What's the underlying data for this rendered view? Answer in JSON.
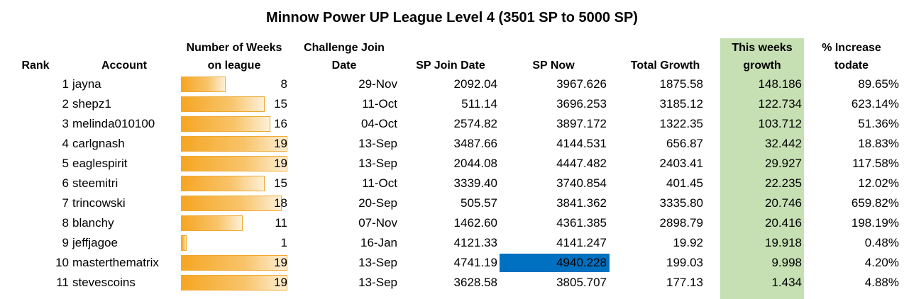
{
  "title": "Minnow Power UP League Level 4 (3501 SP to 5000 SP)",
  "colors": {
    "this_week_column": "#c6e0b4",
    "highlight_cell": "#0070c0",
    "bar": "#f5a623"
  },
  "headers": {
    "rank": "Rank",
    "account": "Account",
    "weeks_line1": "Number of Weeks",
    "weeks_line2": "on league",
    "challenge_line1": "Challenge Join",
    "challenge_line2": "Date",
    "sp_join": "SP Join Date",
    "sp_now": "SP Now",
    "total_growth": "Total Growth",
    "week_line1": "This weeks",
    "week_line2": "growth",
    "pct_line1": "% Increase",
    "pct_line2": "todate"
  },
  "weeks_max": 19,
  "rows": [
    {
      "rank": "1",
      "account": "jayna",
      "weeks": "8",
      "weeks_value": 8,
      "challenge_date": "29-Nov",
      "sp_join": "2092.04",
      "sp_now": "3967.626",
      "total_growth": "1875.58",
      "week_growth": "148.186",
      "pct": "89.65%"
    },
    {
      "rank": "2",
      "account": "shepz1",
      "weeks": "15",
      "weeks_value": 15,
      "challenge_date": "11-Oct",
      "sp_join": "511.14",
      "sp_now": "3696.253",
      "total_growth": "3185.12",
      "week_growth": "122.734",
      "pct": "623.14%"
    },
    {
      "rank": "3",
      "account": "melinda010100",
      "weeks": "16",
      "weeks_value": 16,
      "challenge_date": "04-Oct",
      "sp_join": "2574.82",
      "sp_now": "3897.172",
      "total_growth": "1322.35",
      "week_growth": "103.712",
      "pct": "51.36%"
    },
    {
      "rank": "4",
      "account": "carlgnash",
      "weeks": "19",
      "weeks_value": 19,
      "challenge_date": "13-Sep",
      "sp_join": "3487.66",
      "sp_now": "4144.531",
      "total_growth": "656.87",
      "week_growth": "32.442",
      "pct": "18.83%"
    },
    {
      "rank": "5",
      "account": "eaglespirit",
      "weeks": "19",
      "weeks_value": 19,
      "challenge_date": "13-Sep",
      "sp_join": "2044.08",
      "sp_now": "4447.482",
      "total_growth": "2403.41",
      "week_growth": "29.927",
      "pct": "117.58%"
    },
    {
      "rank": "6",
      "account": "steemitri",
      "weeks": "15",
      "weeks_value": 15,
      "challenge_date": "11-Oct",
      "sp_join": "3339.40",
      "sp_now": "3740.854",
      "total_growth": "401.45",
      "week_growth": "22.235",
      "pct": "12.02%"
    },
    {
      "rank": "7",
      "account": "trincowski",
      "weeks": "18",
      "weeks_value": 18,
      "challenge_date": "20-Sep",
      "sp_join": "505.57",
      "sp_now": "3841.362",
      "total_growth": "3335.80",
      "week_growth": "20.746",
      "pct": "659.82%"
    },
    {
      "rank": "8",
      "account": "blanchy",
      "weeks": "11",
      "weeks_value": 11,
      "challenge_date": "07-Nov",
      "sp_join": "1462.60",
      "sp_now": "4361.385",
      "total_growth": "2898.79",
      "week_growth": "20.416",
      "pct": "198.19%"
    },
    {
      "rank": "9",
      "account": "jeffjagoe",
      "weeks": "1",
      "weeks_value": 1,
      "challenge_date": "16-Jan",
      "sp_join": "4121.33",
      "sp_now": "4141.247",
      "total_growth": "19.92",
      "week_growth": "19.918",
      "pct": "0.48%"
    },
    {
      "rank": "10",
      "account": "masterthematrix",
      "weeks": "19",
      "weeks_value": 19,
      "challenge_date": "13-Sep",
      "sp_join": "4741.19",
      "sp_now": "4940.228",
      "total_growth": "199.03",
      "week_growth": "9.998",
      "pct": "4.20%",
      "highlight_sp_now": true
    },
    {
      "rank": "11",
      "account": "stevescoins",
      "weeks": "19",
      "weeks_value": 19,
      "challenge_date": "13-Sep",
      "sp_join": "3628.58",
      "sp_now": "3805.707",
      "total_growth": "177.13",
      "week_growth": "1.434",
      "pct": "4.88%"
    }
  ]
}
